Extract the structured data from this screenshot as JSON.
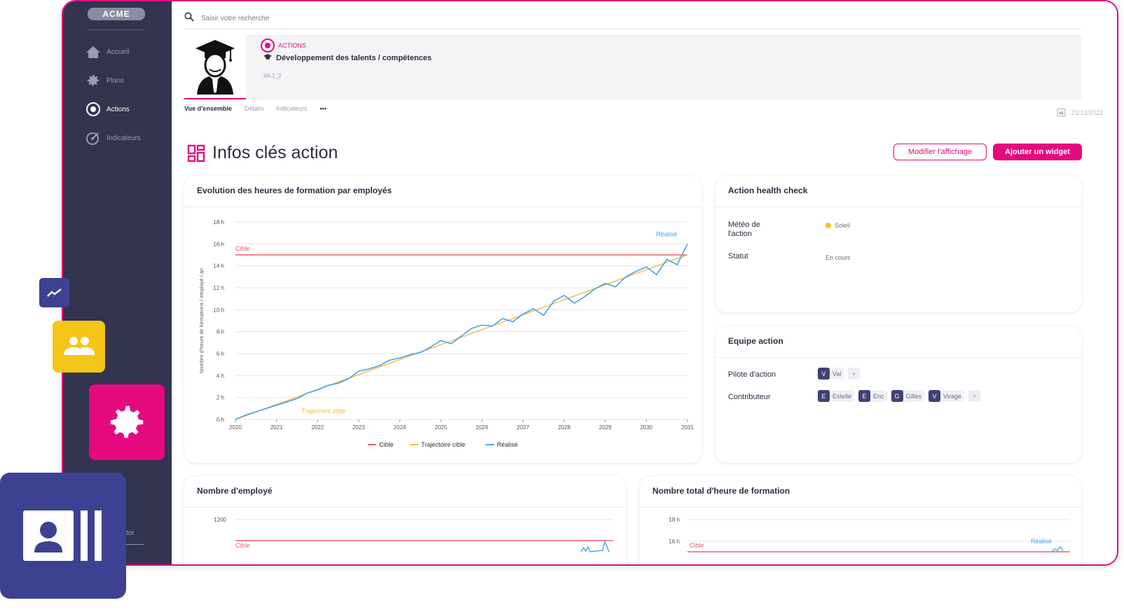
{
  "sidebar": {
    "brand": "ACME",
    "items": [
      {
        "label": "Accueil",
        "icon": "home-icon"
      },
      {
        "label": "Plans",
        "icon": "gear-icon"
      },
      {
        "label": "Actions",
        "icon": "target-icon",
        "active": true
      },
      {
        "label": "Indicateurs",
        "icon": "gauge-icon"
      }
    ],
    "bottom_label": "tor"
  },
  "search": {
    "placeholder": "Saisir votre recherche"
  },
  "header": {
    "kicker": "ACTIONS",
    "title": "Développement des talents / compétences",
    "code": "#A.1_2"
  },
  "tabs": [
    {
      "label": "Vue d'ensemble",
      "active": true
    },
    {
      "label": "Détails"
    },
    {
      "label": "Indicateurs"
    },
    {
      "label": "•••"
    }
  ],
  "date": "21/12/2022",
  "page_title": "Infos clés action",
  "buttons": {
    "modify": "Modifier l'affichage",
    "add_widget": "Ajouter un widget"
  },
  "cards": {
    "evolution_title": "Evolution des heures de formation par employés",
    "health_title": "Action health check",
    "team_title": "Equipe action",
    "employees_title": "Nombre d'employé",
    "total_title": "Nombre total d'heure de formation"
  },
  "health": {
    "meteo_label": "Météo de l'action",
    "meteo_value": "Soleil",
    "statut_label": "Statut",
    "statut_value": "En cours"
  },
  "team": {
    "pilot_label": "Pilote d'action",
    "pilot": [
      {
        "letter": "V",
        "name": "Val"
      }
    ],
    "contrib_label": "Contributeur",
    "contributors": [
      {
        "letter": "E",
        "name": "Estelle"
      },
      {
        "letter": "E",
        "name": "Eric"
      },
      {
        "letter": "G",
        "name": "Gilles"
      },
      {
        "letter": "V",
        "name": "Virage"
      }
    ]
  },
  "colors": {
    "accent": "#e5097f",
    "sidebar": "#33344f",
    "cible": "#ef5b6b",
    "trajectoire": "#f4b942",
    "realise": "#4aa3df"
  },
  "chart_data": [
    {
      "type": "line",
      "title": "Evolution des heures de formation par employés",
      "ylabel": "Nombre d'heure de formations / employé / an",
      "xlabel": "",
      "x_ticks": [
        "2020",
        "2021",
        "2022",
        "2023",
        "2024",
        "2025",
        "2026",
        "2027",
        "2028",
        "2029",
        "2030",
        "2031"
      ],
      "y_ticks": [
        "0 h",
        "2 h",
        "4 h",
        "6 h",
        "8 h",
        "10 h",
        "12 h",
        "14 h",
        "16 h",
        "18 h"
      ],
      "xlim": [
        2020,
        2031
      ],
      "ylim": [
        0,
        18
      ],
      "grid": true,
      "legend": "bottom",
      "annotations": {
        "cible": "Cible",
        "trajectoire": "Trajectoire cible",
        "realise": "Réalisé"
      },
      "series": [
        {
          "name": "Cible",
          "x": [
            2020,
            2031
          ],
          "y": [
            15,
            15
          ]
        },
        {
          "name": "Trajectoire cible",
          "x": [
            2020,
            2031
          ],
          "y": [
            0,
            15
          ]
        },
        {
          "name": "Réalisé",
          "x": [
            2020,
            2020.25,
            2020.5,
            2020.75,
            2021,
            2021.25,
            2021.5,
            2021.75,
            2022,
            2022.25,
            2022.5,
            2022.75,
            2023,
            2023.25,
            2023.5,
            2023.75,
            2024,
            2024.25,
            2024.5,
            2024.75,
            2025,
            2025.25,
            2025.5,
            2025.75,
            2026,
            2026.25,
            2026.5,
            2026.75,
            2027,
            2027.25,
            2027.5,
            2027.75,
            2028,
            2028.25,
            2028.5,
            2028.75,
            2029,
            2029.25,
            2029.5,
            2029.75,
            2030,
            2030.25,
            2030.5,
            2030.75,
            2031
          ],
          "y": [
            0,
            0.4,
            0.7,
            1.0,
            1.3,
            1.6,
            1.9,
            2.4,
            2.7,
            3.1,
            3.3,
            3.7,
            4.4,
            4.6,
            4.9,
            5.4,
            5.6,
            5.9,
            6.1,
            6.6,
            7.2,
            6.9,
            7.6,
            8.3,
            8.6,
            8.5,
            9.2,
            8.9,
            9.6,
            10.1,
            9.5,
            10.8,
            11.3,
            10.6,
            11.2,
            11.9,
            12.4,
            12.1,
            13.0,
            13.5,
            13.9,
            13.2,
            14.6,
            14.1,
            16.0
          ]
        }
      ]
    },
    {
      "type": "line",
      "title": "Nombre d'employé",
      "y_ticks": [
        "1200"
      ],
      "annotations": {
        "cible": "Cible"
      }
    },
    {
      "type": "line",
      "title": "Nombre total d'heure de formation",
      "y_ticks": [
        "18 h",
        "16 h"
      ],
      "annotations": {
        "cible": "Cible",
        "realise": "Réalisé"
      }
    }
  ]
}
